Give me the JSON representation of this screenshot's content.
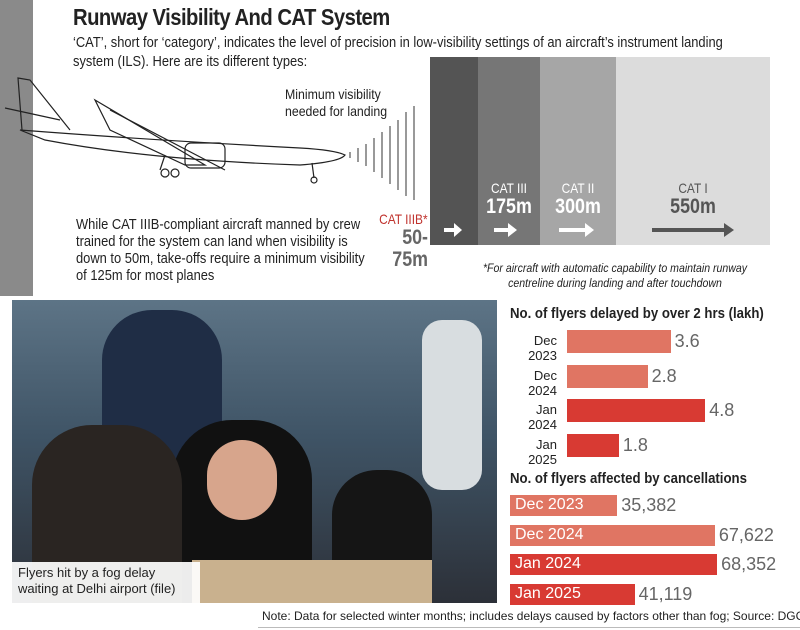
{
  "title": "Runway Visibility And CAT System",
  "description": "‘CAT’, short for ‘category’, indicates the level of precision in low-visibility settings of an aircraft’s instrument landing system (ILS). Here are its different types:",
  "min_visibility_label": "Minimum visibility needed for landing",
  "categories": [
    {
      "name": "CAT IIIB*",
      "value": "50-75m"
    },
    {
      "name": "CAT III",
      "value": "175m"
    },
    {
      "name": "CAT II",
      "value": "300m"
    },
    {
      "name": "CAT I",
      "value": "550m"
    }
  ],
  "while_text": "While CAT IIIB-compliant aircraft manned by crew trained for the system can land when visibility is down to 50m, take-offs require a minimum visibility of 125m for most planes",
  "footnote": "*For aircraft with automatic capability to maintain runway centreline during landing and after touchdown",
  "photo_caption": "Flyers hit by a fog delay waiting at Delhi airport (file)",
  "note": "Note: Data for selected winter months; includes delays caused by factors other than fog; Source: DGCA",
  "colors": {
    "light": "#e07563",
    "dark": "#d83a33"
  },
  "chart_data": [
    {
      "type": "bar",
      "title": "No. of flyers delayed by over 2 hrs (lakh)",
      "categories": [
        "Dec 2023",
        "Dec 2024",
        "Jan 2024",
        "Jan 2025"
      ],
      "values": [
        3.6,
        2.8,
        4.8,
        1.8
      ],
      "labels": [
        "3.6",
        "2.8",
        "4.8",
        "1.8"
      ]
    },
    {
      "type": "bar",
      "title": "No. of flyers affected by cancellations",
      "categories": [
        "Dec 2023",
        "Dec 2024",
        "Jan 2024",
        "Jan 2025"
      ],
      "values": [
        35382,
        67622,
        68352,
        41119
      ],
      "labels": [
        "35,382",
        "67,622",
        "68,352",
        "41,119"
      ]
    }
  ]
}
